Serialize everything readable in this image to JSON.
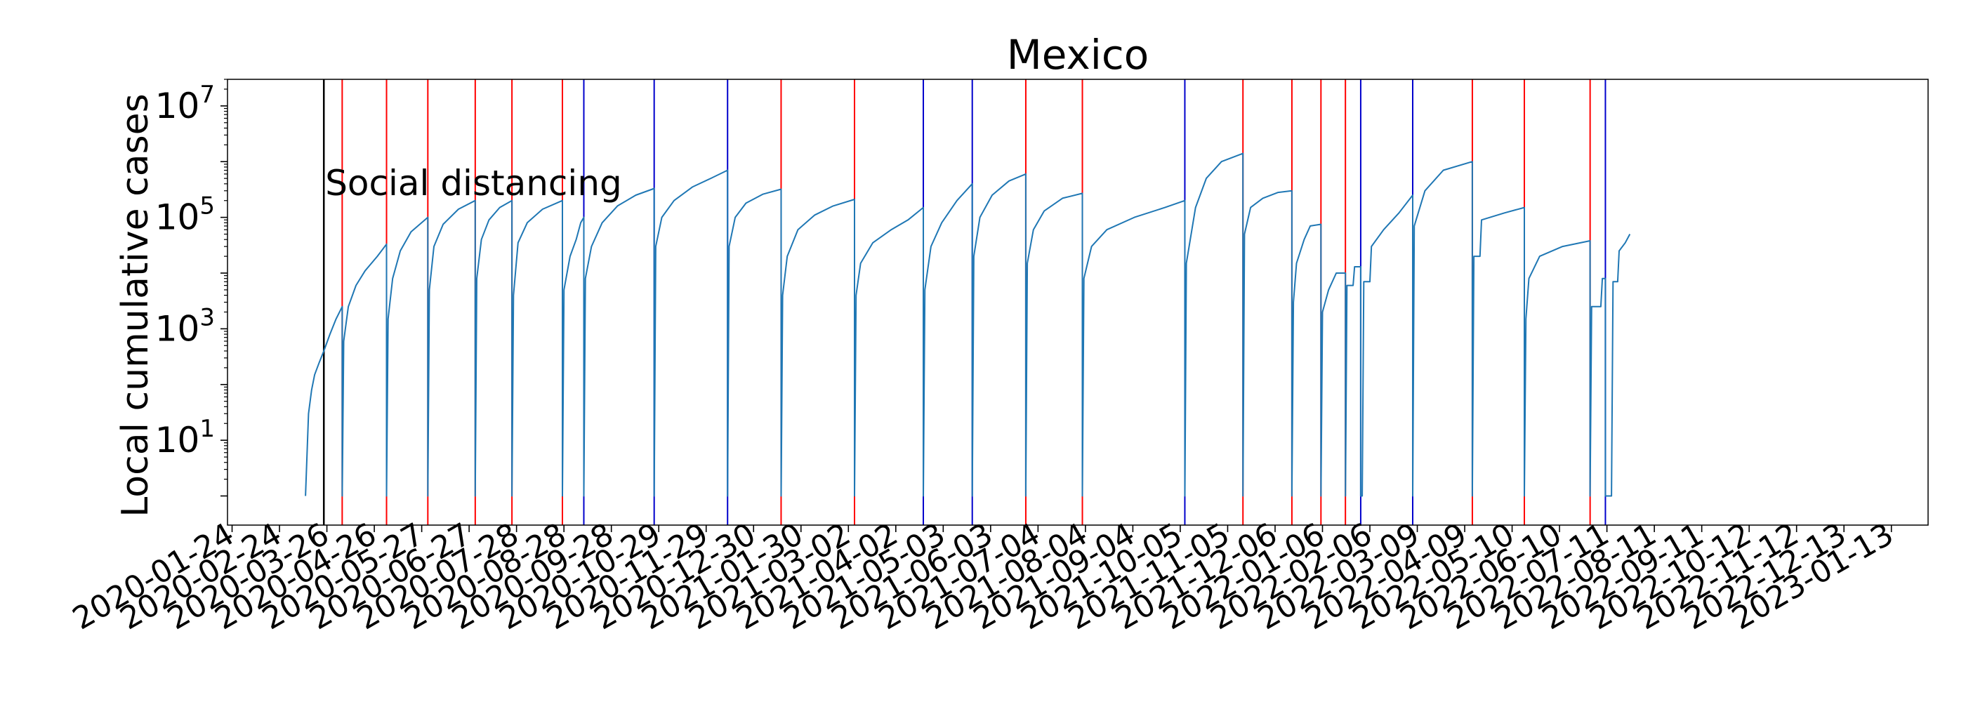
{
  "chart_data": {
    "type": "line",
    "title": "Mexico",
    "xlabel": "",
    "ylabel": "Local cumulative cases",
    "yscale": "log",
    "ylim": [
      0.3,
      30000000
    ],
    "xlim": [
      "2020-01-21",
      "2023-02-06"
    ],
    "y_ticks": [
      {
        "base": "10",
        "exp": "1",
        "value": 10
      },
      {
        "base": "10",
        "exp": "3",
        "value": 1000
      },
      {
        "base": "10",
        "exp": "5",
        "value": 100000
      },
      {
        "base": "10",
        "exp": "7",
        "value": 10000000
      }
    ],
    "x_ticks": [
      "2020-01-24",
      "2020-02-24",
      "2020-03-26",
      "2020-04-26",
      "2020-05-27",
      "2020-06-27",
      "2020-07-28",
      "2020-08-28",
      "2020-09-28",
      "2020-10-29",
      "2020-11-29",
      "2020-12-30",
      "2021-01-30",
      "2021-03-02",
      "2021-04-02",
      "2021-05-03",
      "2021-06-03",
      "2021-07-04",
      "2021-08-04",
      "2021-09-04",
      "2021-10-05",
      "2021-11-05",
      "2021-12-06",
      "2022-01-06",
      "2022-02-06",
      "2022-03-09",
      "2022-04-09",
      "2022-05-10",
      "2022-06-10",
      "2022-07-11",
      "2022-08-11",
      "2022-09-11",
      "2022-10-12",
      "2022-11-12",
      "2022-12-13",
      "2023-01-13"
    ],
    "grid": false,
    "annotation": {
      "text": "Social distancing",
      "date": "2020-03-24"
    },
    "colors": {
      "line": "#1f77b4",
      "red_marker": "#ff0000",
      "blue_marker": "#0000cc",
      "black_marker": "#000000"
    },
    "vertical_lines": [
      {
        "date": "2020-03-24",
        "color": "black"
      },
      {
        "date": "2020-04-05",
        "color": "red"
      },
      {
        "date": "2020-05-04",
        "color": "red"
      },
      {
        "date": "2020-05-31",
        "color": "red"
      },
      {
        "date": "2020-07-01",
        "color": "red"
      },
      {
        "date": "2020-07-25",
        "color": "red"
      },
      {
        "date": "2020-08-27",
        "color": "red"
      },
      {
        "date": "2020-09-10",
        "color": "blue"
      },
      {
        "date": "2020-10-26",
        "color": "blue"
      },
      {
        "date": "2020-12-13",
        "color": "blue"
      },
      {
        "date": "2021-01-17",
        "color": "red"
      },
      {
        "date": "2021-03-06",
        "color": "red"
      },
      {
        "date": "2021-04-20",
        "color": "blue"
      },
      {
        "date": "2021-05-22",
        "color": "blue"
      },
      {
        "date": "2021-06-26",
        "color": "red"
      },
      {
        "date": "2021-08-02",
        "color": "red"
      },
      {
        "date": "2021-10-08",
        "color": "blue"
      },
      {
        "date": "2021-11-15",
        "color": "red"
      },
      {
        "date": "2021-12-17",
        "color": "red"
      },
      {
        "date": "2022-01-05",
        "color": "red"
      },
      {
        "date": "2022-01-21",
        "color": "red"
      },
      {
        "date": "2022-01-31",
        "color": "blue"
      },
      {
        "date": "2022-03-06",
        "color": "blue"
      },
      {
        "date": "2022-04-14",
        "color": "red"
      },
      {
        "date": "2022-05-18",
        "color": "red"
      },
      {
        "date": "2022-06-30",
        "color": "red"
      },
      {
        "date": "2022-07-10",
        "color": "blue"
      }
    ],
    "series": [
      {
        "values": [
          [
            "2020-03-12",
            1
          ],
          [
            "2020-03-14",
            30
          ],
          [
            "2020-03-16",
            80
          ],
          [
            "2020-03-18",
            150
          ],
          [
            "2020-03-21",
            250
          ],
          [
            "2020-03-24",
            400
          ],
          [
            "2020-03-28",
            800
          ],
          [
            "2020-04-01",
            1500
          ],
          [
            "2020-04-05",
            2500
          ],
          [
            "2020-04-05",
            1
          ],
          [
            "2020-04-06",
            600
          ],
          [
            "2020-04-09",
            2500
          ],
          [
            "2020-04-14",
            6000
          ],
          [
            "2020-04-20",
            11000
          ],
          [
            "2020-04-28",
            20000
          ],
          [
            "2020-05-04",
            33000
          ],
          [
            "2020-05-04",
            1
          ],
          [
            "2020-05-05",
            1500
          ],
          [
            "2020-05-08",
            8000
          ],
          [
            "2020-05-13",
            25000
          ],
          [
            "2020-05-20",
            55000
          ],
          [
            "2020-05-31",
            100000
          ],
          [
            "2020-05-31",
            1
          ],
          [
            "2020-06-01",
            5000
          ],
          [
            "2020-06-04",
            30000
          ],
          [
            "2020-06-10",
            75000
          ],
          [
            "2020-06-20",
            140000
          ],
          [
            "2020-07-01",
            200000
          ],
          [
            "2020-07-01",
            1
          ],
          [
            "2020-07-02",
            8000
          ],
          [
            "2020-07-05",
            40000
          ],
          [
            "2020-07-10",
            90000
          ],
          [
            "2020-07-17",
            150000
          ],
          [
            "2020-07-25",
            200000
          ],
          [
            "2020-07-25",
            1
          ],
          [
            "2020-07-26",
            4000
          ],
          [
            "2020-07-29",
            35000
          ],
          [
            "2020-08-04",
            80000
          ],
          [
            "2020-08-14",
            140000
          ],
          [
            "2020-08-27",
            200000
          ],
          [
            "2020-08-27",
            1
          ],
          [
            "2020-08-28",
            5000
          ],
          [
            "2020-09-01",
            20000
          ],
          [
            "2020-09-05",
            40000
          ],
          [
            "2020-09-08",
            80000
          ],
          [
            "2020-09-10",
            100000
          ],
          [
            "2020-09-10",
            1
          ],
          [
            "2020-09-11",
            8000
          ],
          [
            "2020-09-15",
            30000
          ],
          [
            "2020-09-22",
            80000
          ],
          [
            "2020-10-02",
            160000
          ],
          [
            "2020-10-14",
            250000
          ],
          [
            "2020-10-26",
            330000
          ],
          [
            "2020-10-26",
            1
          ],
          [
            "2020-10-27",
            30000
          ],
          [
            "2020-10-31",
            100000
          ],
          [
            "2020-11-08",
            200000
          ],
          [
            "2020-11-20",
            350000
          ],
          [
            "2020-12-02",
            500000
          ],
          [
            "2020-12-13",
            700000
          ],
          [
            "2020-12-13",
            1
          ],
          [
            "2020-12-14",
            30000
          ],
          [
            "2020-12-18",
            100000
          ],
          [
            "2020-12-25",
            180000
          ],
          [
            "2021-01-05",
            260000
          ],
          [
            "2021-01-17",
            320000
          ],
          [
            "2021-01-17",
            1
          ],
          [
            "2021-01-18",
            4000
          ],
          [
            "2021-01-21",
            20000
          ],
          [
            "2021-01-28",
            60000
          ],
          [
            "2021-02-08",
            110000
          ],
          [
            "2021-02-20",
            160000
          ],
          [
            "2021-03-06",
            210000
          ],
          [
            "2021-03-06",
            1
          ],
          [
            "2021-03-07",
            4000
          ],
          [
            "2021-03-10",
            15000
          ],
          [
            "2021-03-18",
            35000
          ],
          [
            "2021-03-30",
            60000
          ],
          [
            "2021-04-10",
            90000
          ],
          [
            "2021-04-20",
            150000
          ],
          [
            "2021-04-20",
            1
          ],
          [
            "2021-04-21",
            5000
          ],
          [
            "2021-04-25",
            30000
          ],
          [
            "2021-05-02",
            80000
          ],
          [
            "2021-05-12",
            200000
          ],
          [
            "2021-05-22",
            400000
          ],
          [
            "2021-05-22",
            1
          ],
          [
            "2021-05-23",
            20000
          ],
          [
            "2021-05-27",
            100000
          ],
          [
            "2021-06-04",
            250000
          ],
          [
            "2021-06-15",
            450000
          ],
          [
            "2021-06-26",
            600000
          ],
          [
            "2021-06-26",
            1
          ],
          [
            "2021-06-27",
            15000
          ],
          [
            "2021-07-01",
            60000
          ],
          [
            "2021-07-08",
            130000
          ],
          [
            "2021-07-20",
            220000
          ],
          [
            "2021-08-02",
            270000
          ],
          [
            "2021-08-02",
            1
          ],
          [
            "2021-08-03",
            8000
          ],
          [
            "2021-08-08",
            30000
          ],
          [
            "2021-08-18",
            60000
          ],
          [
            "2021-09-05",
            100000
          ],
          [
            "2021-09-25",
            150000
          ],
          [
            "2021-10-08",
            200000
          ],
          [
            "2021-10-08",
            1
          ],
          [
            "2021-10-09",
            15000
          ],
          [
            "2021-10-15",
            150000
          ],
          [
            "2021-10-22",
            500000
          ],
          [
            "2021-11-01",
            1000000
          ],
          [
            "2021-11-15",
            1400000
          ],
          [
            "2021-11-15",
            1
          ],
          [
            "2021-11-16",
            50000
          ],
          [
            "2021-11-20",
            150000
          ],
          [
            "2021-11-28",
            220000
          ],
          [
            "2021-12-08",
            280000
          ],
          [
            "2021-12-17",
            300000
          ],
          [
            "2021-12-17",
            1
          ],
          [
            "2021-12-18",
            3000
          ],
          [
            "2021-12-20",
            15000
          ],
          [
            "2021-12-25",
            40000
          ],
          [
            "2021-12-29",
            70000
          ],
          [
            "2022-01-05",
            75000
          ],
          [
            "2022-01-05",
            1
          ],
          [
            "2022-01-06",
            2000
          ],
          [
            "2022-01-10",
            5000
          ],
          [
            "2022-01-15",
            10000
          ],
          [
            "2022-01-21",
            10000
          ],
          [
            "2022-01-21",
            1
          ],
          [
            "2022-01-22",
            6000
          ],
          [
            "2022-01-26",
            6000
          ],
          [
            "2022-01-27",
            13000
          ],
          [
            "2022-01-31",
            13000
          ],
          [
            "2022-01-31",
            1
          ],
          [
            "2022-02-01",
            1
          ],
          [
            "2022-02-02",
            7000
          ],
          [
            "2022-02-06",
            7000
          ],
          [
            "2022-02-07",
            30000
          ],
          [
            "2022-02-15",
            60000
          ],
          [
            "2022-02-25",
            120000
          ],
          [
            "2022-03-06",
            250000
          ],
          [
            "2022-03-06",
            1
          ],
          [
            "2022-03-07",
            70000
          ],
          [
            "2022-03-14",
            300000
          ],
          [
            "2022-03-26",
            700000
          ],
          [
            "2022-04-14",
            1000000
          ],
          [
            "2022-04-14",
            1
          ],
          [
            "2022-04-15",
            20000
          ],
          [
            "2022-04-19",
            20000
          ],
          [
            "2022-04-20",
            90000
          ],
          [
            "2022-05-05",
            120000
          ],
          [
            "2022-05-18",
            150000
          ],
          [
            "2022-05-18",
            1
          ],
          [
            "2022-05-19",
            1500
          ],
          [
            "2022-05-21",
            8000
          ],
          [
            "2022-05-28",
            20000
          ],
          [
            "2022-06-12",
            30000
          ],
          [
            "2022-06-30",
            38000
          ],
          [
            "2022-06-30",
            1
          ],
          [
            "2022-07-01",
            2500
          ],
          [
            "2022-07-07",
            2500
          ],
          [
            "2022-07-08",
            8000
          ],
          [
            "2022-07-10",
            8000
          ],
          [
            "2022-07-10",
            1
          ],
          [
            "2022-07-14",
            1
          ],
          [
            "2022-07-15",
            7000
          ],
          [
            "2022-07-18",
            7000
          ],
          [
            "2022-07-19",
            25000
          ],
          [
            "2022-07-23",
            35000
          ],
          [
            "2022-07-26",
            50000
          ]
        ]
      }
    ]
  }
}
